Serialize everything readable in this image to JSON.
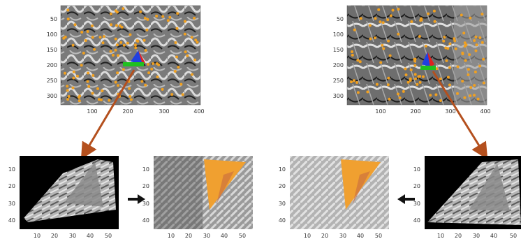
{
  "colors": {
    "feature_point": "#f0a020",
    "patch_highlight": "#f0a030",
    "connector_arrow": "#b4501e",
    "axis_red": "#e02020",
    "axis_green": "#20c020",
    "axis_blue": "#2040e0",
    "flow_arrow": "#111111"
  },
  "panels": [
    {
      "id": "top-left-image",
      "y_ticks": [
        "50",
        "100",
        "150",
        "200",
        "250",
        "300"
      ],
      "x_ticks": [
        "100",
        "200",
        "300",
        "400"
      ]
    },
    {
      "id": "top-right-image",
      "y_ticks": [
        "50",
        "100",
        "150",
        "200",
        "250",
        "300"
      ],
      "x_ticks": [
        "100",
        "200",
        "300",
        "400"
      ]
    },
    {
      "id": "patch-1-warped",
      "y_ticks": [
        "10",
        "20",
        "30",
        "40"
      ],
      "x_ticks": [
        "10",
        "20",
        "30",
        "40",
        "50"
      ]
    },
    {
      "id": "patch-2-highlighted",
      "y_ticks": [
        "10",
        "20",
        "30",
        "40"
      ],
      "x_ticks": [
        "10",
        "20",
        "30",
        "40",
        "50"
      ]
    },
    {
      "id": "patch-3-highlighted",
      "y_ticks": [
        "10",
        "20",
        "30",
        "40"
      ],
      "x_ticks": [
        "10",
        "20",
        "30",
        "40",
        "50"
      ]
    },
    {
      "id": "patch-4-warped",
      "y_ticks": [
        "10",
        "20",
        "30",
        "40"
      ],
      "x_ticks": [
        "10",
        "20",
        "30",
        "40",
        "50"
      ]
    }
  ]
}
